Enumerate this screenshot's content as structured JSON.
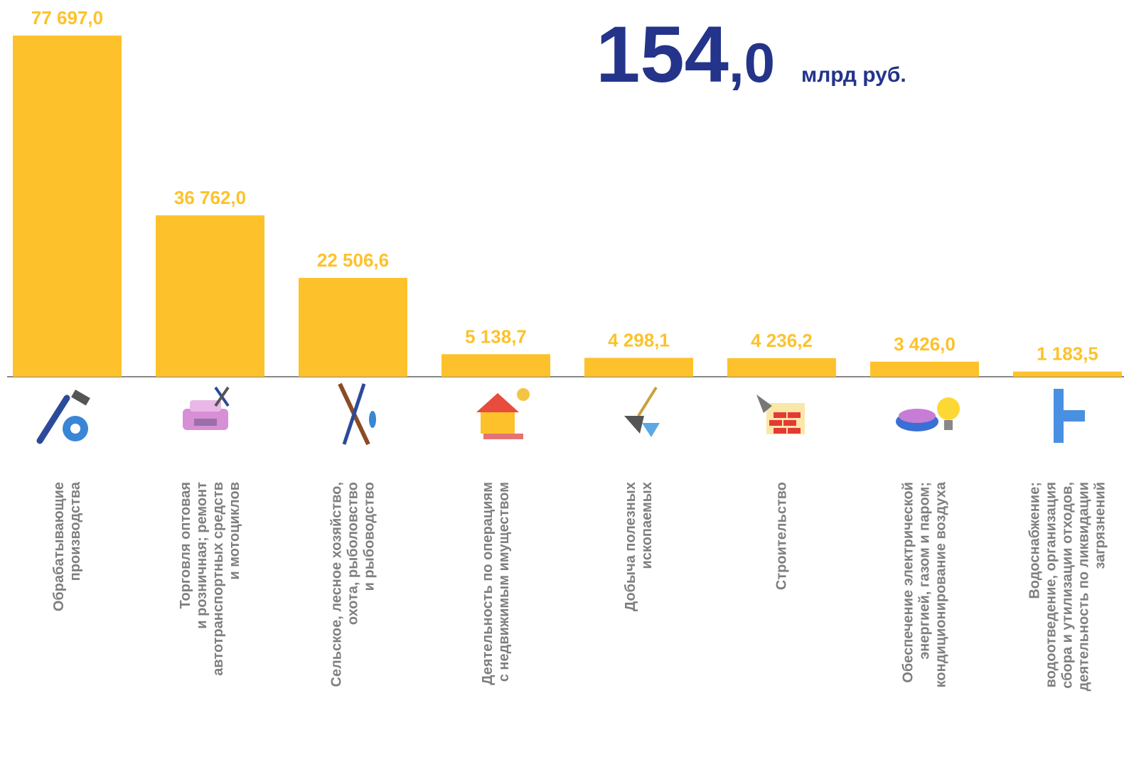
{
  "chart_data": {
    "type": "bar",
    "annotations": [
      "154",
      ",0",
      "млрд руб."
    ],
    "categories": [
      [
        "Обрабатывающие",
        "производства"
      ],
      [
        "Торговля оптовая",
        "и розничная; ремонт",
        "автотранспортных средств",
        "и мотоциклов"
      ],
      [
        "Сельское, лесное хозяйство,",
        "охота, рыболовство",
        "и рыбоводство"
      ],
      [
        "Деятельность по операциям",
        "с недвижимым имуществом"
      ],
      [
        "Добыча полезных",
        "ископаемых"
      ],
      [
        "Строительство"
      ],
      [
        "Обеспечение электрической",
        "энергией, газом и паром;",
        "кондиционирование воздуха"
      ],
      [
        "Водоснабжение;",
        "водоотведение, организация",
        "сбора и утилизации отходов,",
        "деятельность по ликвидации",
        "загрязнений"
      ]
    ],
    "values": [
      77697.0,
      36762.0,
      22506.6,
      5138.7,
      4298.1,
      4236.2,
      3426.0,
      1183.5
    ],
    "value_labels": [
      "77 697,0",
      "36 762,0",
      "22 506,6",
      "5 138,7",
      "4 298,1",
      "4 236,2",
      "3 426,0",
      "1 183,5"
    ],
    "color": "#fdc22b",
    "ylim": [
      0,
      80000
    ]
  }
}
